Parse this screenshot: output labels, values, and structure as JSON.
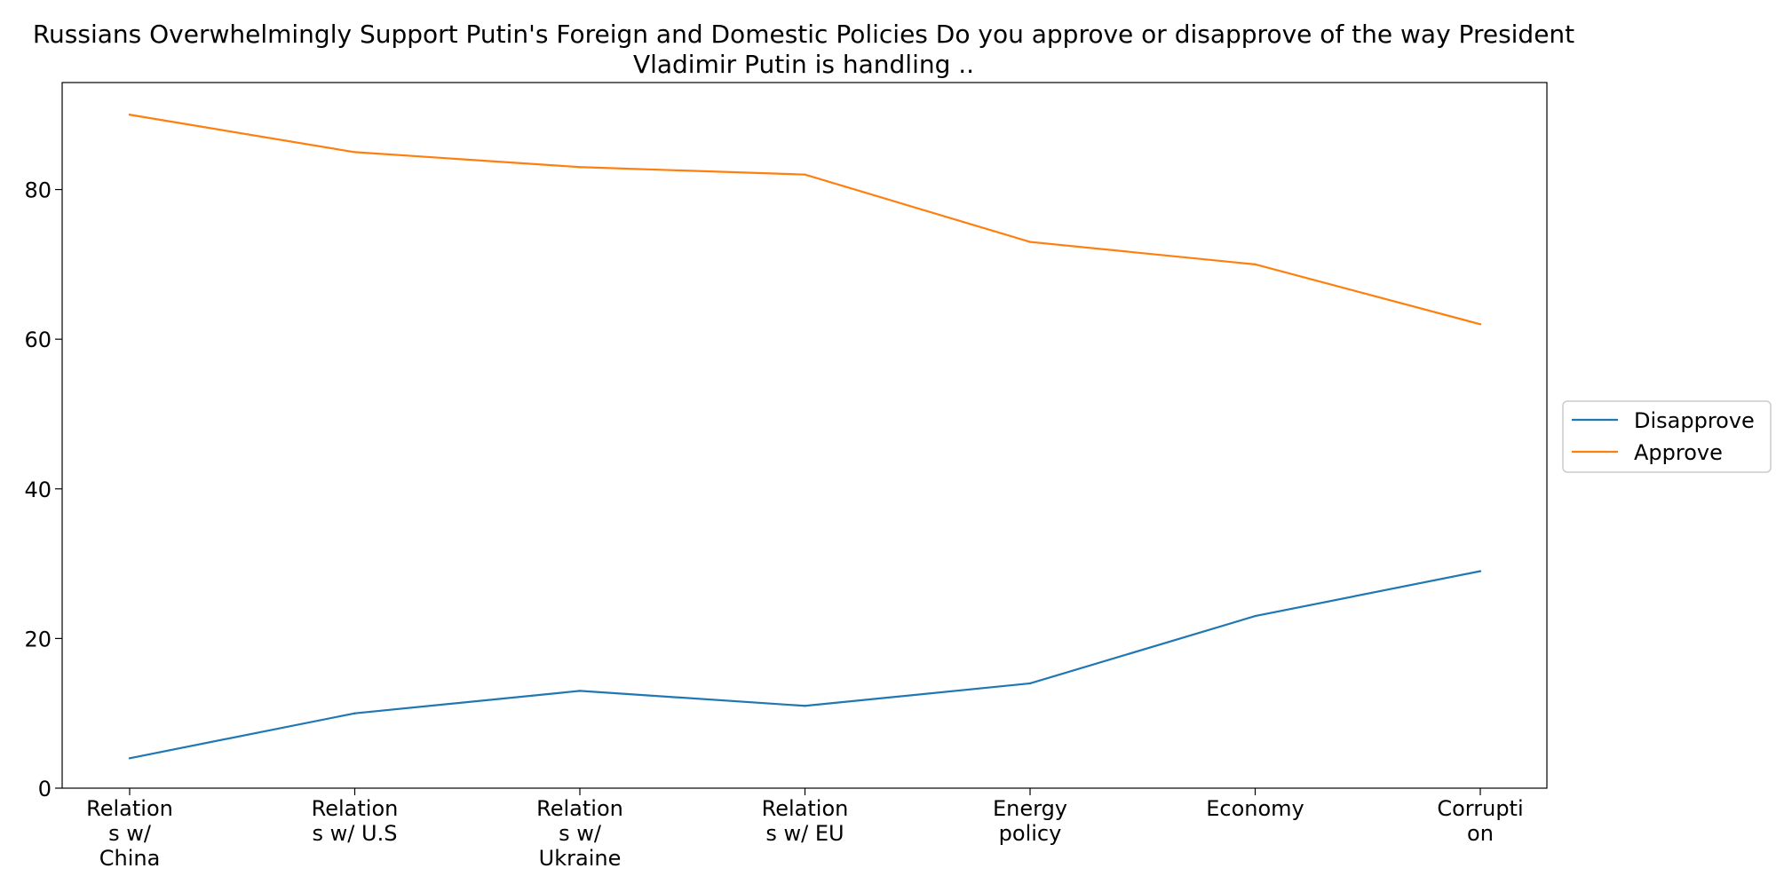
{
  "chart_data": {
    "type": "line",
    "title_lines": [
      "Russians Overwhelmingly Support Putin's Foreign and Domestic Policies Do you approve or disapprove of the way President",
      "Vladimir Putin is handling .."
    ],
    "xlabel": "",
    "ylabel": "",
    "categories": [
      [
        "Relation",
        "s w/",
        "China"
      ],
      [
        "Relation",
        "s w/ U.S"
      ],
      [
        "Relation",
        "s w/",
        "Ukraine"
      ],
      [
        "Relation",
        "s w/ EU"
      ],
      [
        "Energy",
        "policy"
      ],
      [
        "Economy"
      ],
      [
        "Corrupti",
        "on"
      ]
    ],
    "y_ticks": [
      0,
      20,
      40,
      60,
      80
    ],
    "ylim": [
      0,
      94.3
    ],
    "grid": false,
    "legend_position": "center-right, outside plot",
    "series": [
      {
        "name": "Disapprove",
        "color": "#1f77b4",
        "values": [
          4,
          10,
          13,
          11,
          14,
          23,
          29
        ]
      },
      {
        "name": "Approve",
        "color": "#ff7f0e",
        "values": [
          90,
          85,
          83,
          82,
          73,
          70,
          62
        ]
      }
    ]
  }
}
